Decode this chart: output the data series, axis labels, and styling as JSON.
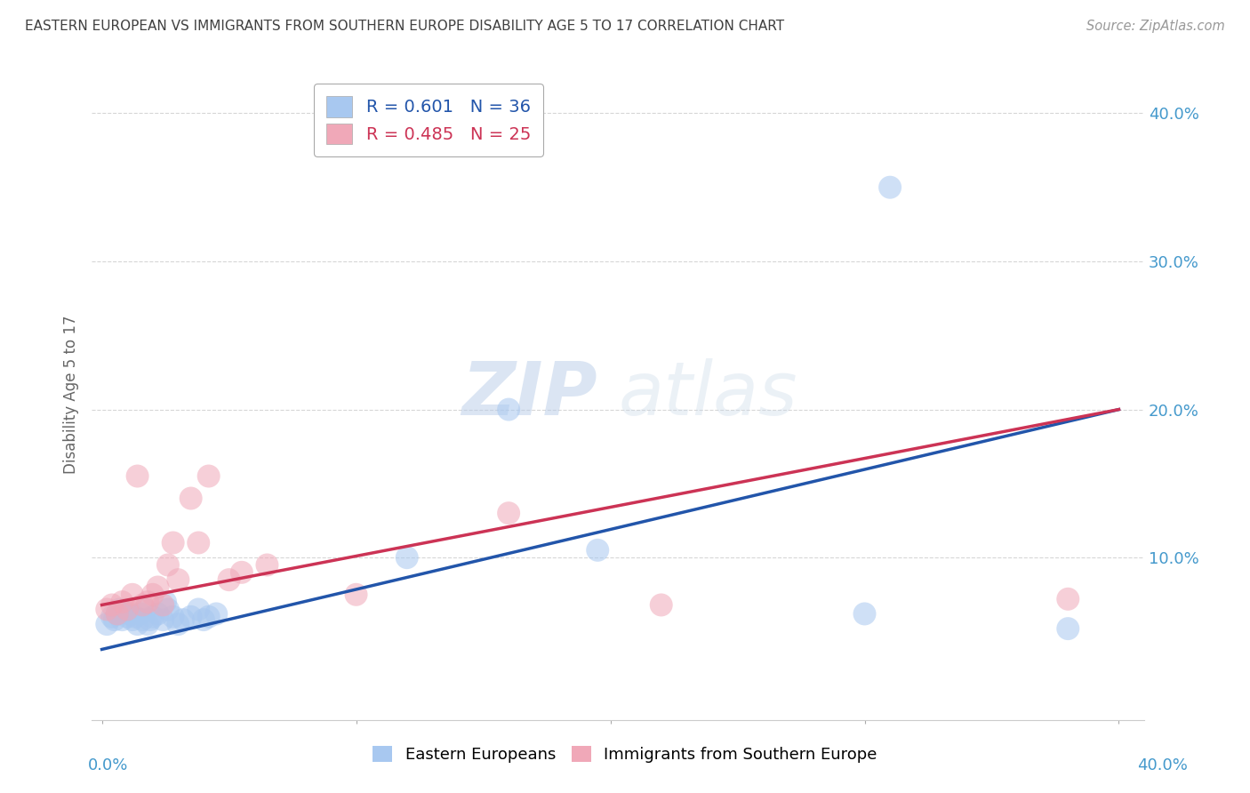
{
  "title": "EASTERN EUROPEAN VS IMMIGRANTS FROM SOUTHERN EUROPE DISABILITY AGE 5 TO 17 CORRELATION CHART",
  "source": "Source: ZipAtlas.com",
  "ylabel": "Disability Age 5 to 17",
  "blue_R": 0.601,
  "blue_N": 36,
  "pink_R": 0.485,
  "pink_N": 25,
  "blue_color": "#A8C8F0",
  "pink_color": "#F0A8B8",
  "blue_line_color": "#2255AA",
  "pink_line_color": "#CC3355",
  "background_color": "#FFFFFF",
  "grid_color": "#CCCCCC",
  "title_color": "#404040",
  "axis_label_color": "#4499CC",
  "xlim": [
    -0.004,
    0.41
  ],
  "ylim": [
    -0.01,
    0.43
  ],
  "xtick_values": [
    0.0,
    0.1,
    0.2,
    0.3,
    0.4
  ],
  "ytick_values": [
    0.1,
    0.2,
    0.3,
    0.4
  ],
  "blue_scatter_x": [
    0.002,
    0.004,
    0.005,
    0.006,
    0.007,
    0.008,
    0.009,
    0.01,
    0.011,
    0.012,
    0.013,
    0.014,
    0.015,
    0.016,
    0.017,
    0.018,
    0.019,
    0.02,
    0.022,
    0.024,
    0.025,
    0.026,
    0.028,
    0.03,
    0.032,
    0.035,
    0.038,
    0.04,
    0.042,
    0.045,
    0.12,
    0.16,
    0.195,
    0.3,
    0.31,
    0.38
  ],
  "blue_scatter_y": [
    0.055,
    0.06,
    0.058,
    0.062,
    0.065,
    0.058,
    0.063,
    0.06,
    0.062,
    0.058,
    0.06,
    0.055,
    0.062,
    0.058,
    0.065,
    0.055,
    0.058,
    0.06,
    0.062,
    0.058,
    0.07,
    0.065,
    0.06,
    0.055,
    0.058,
    0.06,
    0.065,
    0.058,
    0.06,
    0.062,
    0.1,
    0.2,
    0.105,
    0.062,
    0.35,
    0.052
  ],
  "pink_scatter_x": [
    0.002,
    0.004,
    0.006,
    0.008,
    0.01,
    0.012,
    0.014,
    0.016,
    0.018,
    0.02,
    0.022,
    0.024,
    0.026,
    0.028,
    0.03,
    0.035,
    0.038,
    0.042,
    0.05,
    0.055,
    0.065,
    0.1,
    0.16,
    0.22,
    0.38
  ],
  "pink_scatter_y": [
    0.065,
    0.068,
    0.062,
    0.07,
    0.065,
    0.075,
    0.155,
    0.068,
    0.07,
    0.075,
    0.08,
    0.068,
    0.095,
    0.11,
    0.085,
    0.14,
    0.11,
    0.155,
    0.085,
    0.09,
    0.095,
    0.075,
    0.13,
    0.068,
    0.072
  ],
  "blue_line_x": [
    0.0,
    0.4
  ],
  "blue_line_y": [
    0.038,
    0.2
  ],
  "pink_line_x": [
    0.0,
    0.4
  ],
  "pink_line_y": [
    0.068,
    0.2
  ],
  "watermark_zip": "ZIP",
  "watermark_atlas": "atlas",
  "legend_label_blue": "Eastern Europeans",
  "legend_label_pink": "Immigrants from Southern Europe"
}
